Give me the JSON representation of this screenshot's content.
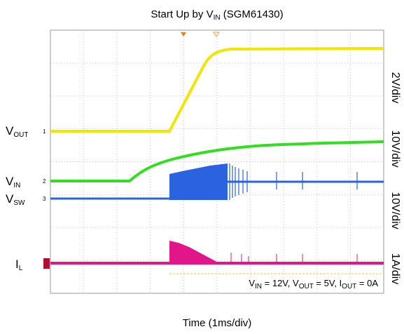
{
  "title": {
    "text": "Start Up by V",
    "sub": "IN",
    "rest": " (SGM61430)"
  },
  "traces": [
    {
      "label": "V",
      "sub": "OUT",
      "channel": "1",
      "scale": "2V/div",
      "color": "#f0e600"
    },
    {
      "label": "V",
      "sub": "IN",
      "channel": "2",
      "scale": "10V/div",
      "color": "#33dd22"
    },
    {
      "label": "V",
      "sub": "SW",
      "channel": "3",
      "scale": "10V/div",
      "color": "#2a62e0"
    },
    {
      "label": "I",
      "sub": "L",
      "scale": "1A/div",
      "color": "#e0168a"
    }
  ],
  "annotation": [
    {
      "text": "V",
      "sub": "IN",
      "rest": " = 12V, "
    },
    {
      "text": "V",
      "sub": "OUT",
      "rest": " = 5V, "
    },
    {
      "text": "I",
      "sub": "OUT",
      "rest": " = 0A"
    }
  ],
  "x_label": "Time (1ms/div)"
}
